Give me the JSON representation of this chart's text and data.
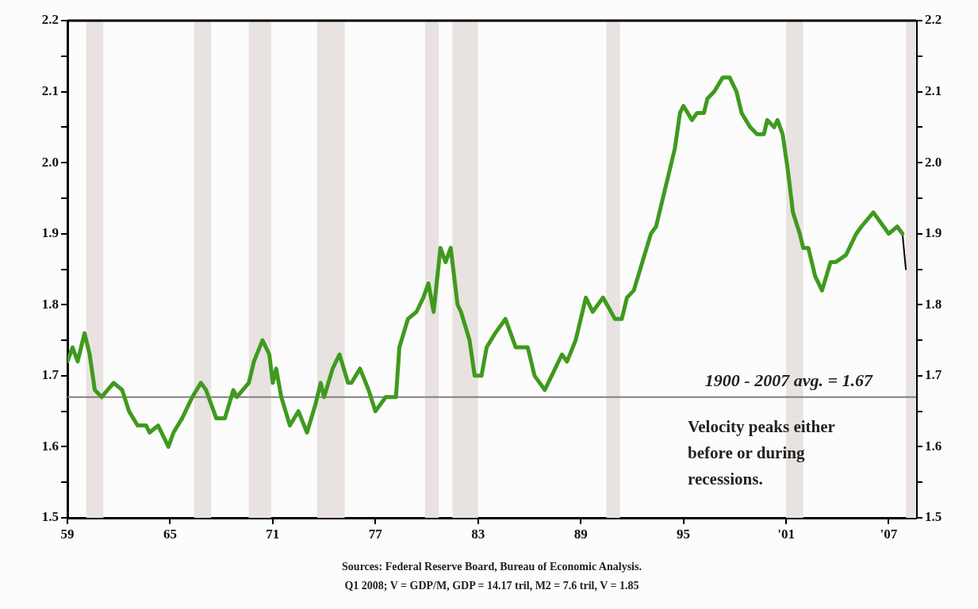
{
  "chart_data": {
    "type": "line",
    "series": [
      {
        "color": "#3f9a1e",
        "x": [
          1959.0,
          1959.3,
          1959.6,
          1960.0,
          1960.3,
          1960.6,
          1961.0,
          1961.7,
          1962.2,
          1962.6,
          1963.1,
          1963.6,
          1963.8,
          1964.3,
          1964.9,
          1965.2,
          1965.7,
          1966.3,
          1966.8,
          1967.1,
          1967.7,
          1968.2,
          1968.7,
          1968.9,
          1969.6,
          1969.9,
          1970.4,
          1970.8,
          1971.0,
          1971.2,
          1971.5,
          1972.0,
          1972.5,
          1973.0,
          1973.5,
          1973.8,
          1974.0,
          1974.5,
          1974.9,
          1975.4,
          1975.6,
          1976.1,
          1976.6,
          1977.0,
          1977.6,
          1978.2,
          1978.4,
          1978.9,
          1979.4,
          1979.8,
          1980.1,
          1980.4,
          1980.8,
          1981.1,
          1981.4,
          1981.8,
          1982.0,
          1982.5,
          1982.8,
          1983.2,
          1983.5,
          1984.0,
          1984.6,
          1985.2,
          1985.9,
          1986.3,
          1986.9,
          1987.3,
          1987.9,
          1988.2,
          1988.7,
          1989.3,
          1989.7,
          1990.3,
          1991.0,
          1991.4,
          1991.7,
          1992.1,
          1992.6,
          1993.1,
          1993.4,
          1993.6,
          1994.1,
          1994.5,
          1994.8,
          1995.0,
          1995.5,
          1995.8,
          1996.2,
          1996.4,
          1996.8,
          1997.3,
          1997.7,
          1998.1,
          1998.4,
          1998.9,
          1999.3,
          1999.7,
          1999.9,
          2000.3,
          2000.5,
          2000.8,
          2001.1,
          2001.4,
          2001.8,
          2002.0,
          2002.3,
          2002.7,
          2003.1,
          2003.6,
          2003.9,
          2004.5,
          2005.1,
          2005.4,
          2006.1,
          2006.4,
          2007.0,
          2007.5,
          2007.8
        ],
        "values": [
          1.72,
          1.74,
          1.72,
          1.76,
          1.73,
          1.68,
          1.67,
          1.69,
          1.68,
          1.65,
          1.63,
          1.63,
          1.62,
          1.63,
          1.6,
          1.62,
          1.64,
          1.67,
          1.69,
          1.68,
          1.64,
          1.64,
          1.68,
          1.67,
          1.69,
          1.72,
          1.75,
          1.73,
          1.69,
          1.71,
          1.67,
          1.63,
          1.65,
          1.62,
          1.66,
          1.69,
          1.67,
          1.71,
          1.73,
          1.69,
          1.69,
          1.71,
          1.68,
          1.65,
          1.67,
          1.67,
          1.74,
          1.78,
          1.79,
          1.81,
          1.83,
          1.79,
          1.88,
          1.86,
          1.88,
          1.8,
          1.79,
          1.75,
          1.7,
          1.7,
          1.74,
          1.76,
          1.78,
          1.74,
          1.74,
          1.7,
          1.68,
          1.7,
          1.73,
          1.72,
          1.75,
          1.81,
          1.79,
          1.81,
          1.78,
          1.78,
          1.81,
          1.82,
          1.86,
          1.9,
          1.91,
          1.93,
          1.98,
          2.02,
          2.07,
          2.08,
          2.06,
          2.07,
          2.07,
          2.09,
          2.1,
          2.12,
          2.12,
          2.1,
          2.07,
          2.05,
          2.04,
          2.04,
          2.06,
          2.05,
          2.06,
          2.04,
          1.99,
          1.93,
          1.9,
          1.88,
          1.88,
          1.84,
          1.82,
          1.86,
          1.86,
          1.87,
          1.9,
          1.91,
          1.93,
          1.92,
          1.9,
          1.91,
          1.9
        ]
      },
      {
        "color": "#000000",
        "x": [
          2007.8,
          2008.0
        ],
        "values": [
          1.9,
          1.85
        ]
      }
    ],
    "xlim": [
      1959,
      2008.6
    ],
    "xticks": [
      {
        "value": 1959,
        "label": "59"
      },
      {
        "value": 1965,
        "label": "65"
      },
      {
        "value": 1971,
        "label": "71"
      },
      {
        "value": 1977,
        "label": "77"
      },
      {
        "value": 1983,
        "label": "83"
      },
      {
        "value": 1989,
        "label": "89"
      },
      {
        "value": 1995,
        "label": "95"
      },
      {
        "value": 2001,
        "label": "'01"
      },
      {
        "value": 2007,
        "label": "'07"
      }
    ],
    "ylim": [
      1.5,
      2.2
    ],
    "yticks": [
      1.5,
      {
        "value": 1.55,
        "label": null
      },
      1.6,
      {
        "value": 1.65,
        "label": null
      },
      1.7,
      {
        "value": 1.75,
        "label": null
      },
      1.8,
      {
        "value": 1.85,
        "label": null
      },
      1.9,
      {
        "value": 1.95,
        "label": null
      },
      {
        "value": 2,
        "label": "2.0"
      },
      {
        "value": 2.05,
        "label": null
      },
      2.1,
      {
        "value": 2.15,
        "label": null
      },
      2.2
    ],
    "y2lim": [
      1.5,
      2.2
    ],
    "y2ticks": [
      1.5,
      {
        "value": 1.55,
        "label": null
      },
      1.6,
      {
        "value": 1.65,
        "label": null
      },
      1.7,
      {
        "value": 1.75,
        "label": null
      },
      1.8,
      {
        "value": 1.85,
        "label": null
      },
      1.9,
      {
        "value": 1.95,
        "label": null
      },
      {
        "value": 2,
        "label": "2.0"
      },
      {
        "value": 2.05,
        "label": null
      },
      2.1,
      {
        "value": 2.15,
        "label": null
      },
      2.2
    ],
    "ref_lines": [
      {
        "axis": "y",
        "value": 1.67,
        "label": "1900 - 2007 avg. = 1.67",
        "color": "#808080"
      }
    ],
    "bands": [
      {
        "axis": "x",
        "from": 1960.1,
        "to": 1961.1,
        "color": "#e8e2e0"
      },
      {
        "axis": "x",
        "from": 1966.4,
        "to": 1967.4,
        "color": "#e8e2e0"
      },
      {
        "axis": "x",
        "from": 1969.6,
        "to": 1970.9,
        "color": "#e8e2e0"
      },
      {
        "axis": "x",
        "from": 1973.6,
        "to": 1975.2,
        "color": "#e8e2e0"
      },
      {
        "axis": "x",
        "from": 1979.9,
        "to": 1980.7,
        "color": "#e8e2e0"
      },
      {
        "axis": "x",
        "from": 1981.5,
        "to": 1983.0,
        "color": "#e8e2e0"
      },
      {
        "axis": "x",
        "from": 1990.5,
        "to": 1991.3,
        "color": "#e8e2e0"
      },
      {
        "axis": "x",
        "from": 2001.0,
        "to": 2002.0,
        "color": "#e8e2e0"
      },
      {
        "axis": "x",
        "from": 2008.0,
        "to": 2008.6,
        "color": "#e8e2e0"
      }
    ],
    "annotations": [
      "Velocity peaks either before or during recessions.",
      "Sources: Federal Reserve Board, Bureau of Economic Analysis.",
      "Q1 2008; V = GDP/M, GDP = 14.17 tril, M2 = 7.6 tril, V = 1.85"
    ],
    "marker": "none",
    "line_style": "solid",
    "grid": false,
    "legend": false
  }
}
